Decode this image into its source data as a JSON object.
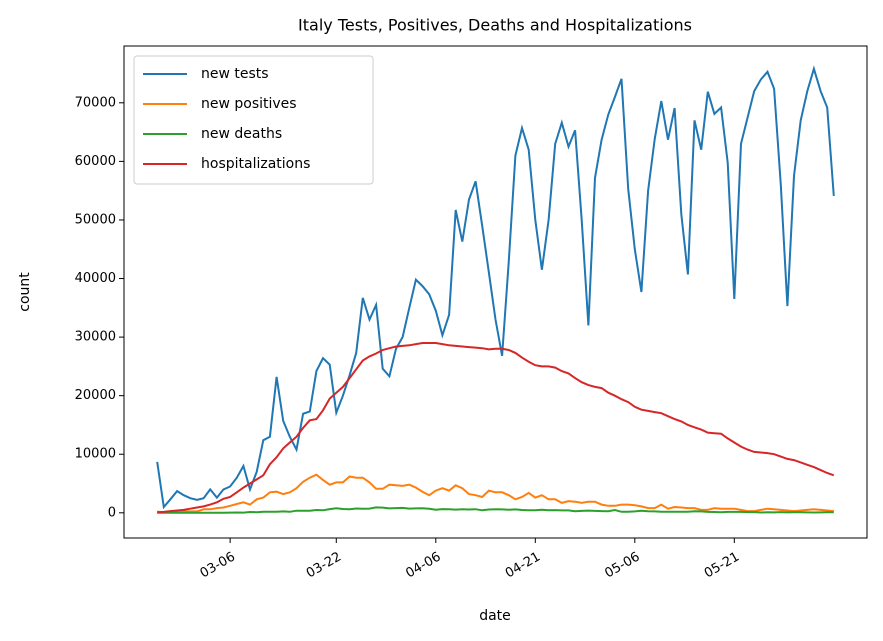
{
  "chart_data": {
    "type": "line",
    "title": "Italy Tests, Positives, Deaths and Hospitalizations",
    "xlabel": "date",
    "ylabel": "count",
    "x": [
      "02-24",
      "02-25",
      "02-26",
      "02-27",
      "02-28",
      "02-29",
      "03-01",
      "03-02",
      "03-03",
      "03-04",
      "03-05",
      "03-06",
      "03-07",
      "03-08",
      "03-09",
      "03-10",
      "03-11",
      "03-12",
      "03-13",
      "03-14",
      "03-15",
      "03-16",
      "03-17",
      "03-18",
      "03-19",
      "03-20",
      "03-21",
      "03-22",
      "03-23",
      "03-24",
      "03-25",
      "03-26",
      "03-27",
      "03-28",
      "03-29",
      "03-30",
      "03-31",
      "04-01",
      "04-02",
      "04-03",
      "04-04",
      "04-05",
      "04-06",
      "04-07",
      "04-08",
      "04-09",
      "04-10",
      "04-11",
      "04-12",
      "04-13",
      "04-14",
      "04-15",
      "04-16",
      "04-17",
      "04-18",
      "04-19",
      "04-20",
      "04-21",
      "04-22",
      "04-23",
      "04-24",
      "04-25",
      "04-26",
      "04-27",
      "04-28",
      "04-29",
      "04-30",
      "05-01",
      "05-02",
      "05-03",
      "05-04",
      "05-05",
      "05-06",
      "05-07",
      "05-08",
      "05-09",
      "05-10",
      "05-11",
      "05-12",
      "05-13",
      "05-14",
      "05-15",
      "05-16",
      "05-17",
      "05-18",
      "05-19",
      "05-20",
      "05-21",
      "05-22",
      "05-23",
      "05-24",
      "05-25",
      "05-26",
      "05-27",
      "05-28",
      "05-29",
      "05-30",
      "05-31",
      "06-01",
      "06-02",
      "06-03",
      "06-04",
      "06-05"
    ],
    "series": [
      {
        "name": "new tests",
        "color": "#1f77b4",
        "values": [
          8700,
          1000,
          2300,
          3700,
          3000,
          2500,
          2200,
          2500,
          4000,
          2600,
          4000,
          4500,
          6000,
          8000,
          4000,
          7000,
          12400,
          13000,
          23200,
          15700,
          13000,
          10800,
          16900,
          17300,
          24200,
          26400,
          25300,
          17100,
          20000,
          23500,
          27300,
          36700,
          33000,
          35500,
          24600,
          23300,
          28000,
          30000,
          35000,
          39800,
          38700,
          37300,
          34500,
          30300,
          33800,
          51700,
          46300,
          53500,
          56600,
          49000,
          41000,
          33000,
          26800,
          43000,
          61000,
          65700,
          62000,
          50000,
          41500,
          50000,
          63000,
          66600,
          62500,
          65300,
          50000,
          32000,
          57200,
          63700,
          68000,
          71000,
          74100,
          55300,
          45000,
          37700,
          55000,
          63800,
          70300,
          63700,
          69100,
          51000,
          40700,
          67000,
          62000,
          71900,
          68100,
          69200,
          59800,
          36500,
          63000,
          67500,
          72000,
          74000,
          75300,
          72400,
          56000,
          35300,
          57500,
          67000,
          72000,
          75800,
          72000,
          69200,
          54100
        ]
      },
      {
        "name": "new positives",
        "color": "#ff7f0e",
        "values": [
          200,
          100,
          200,
          200,
          250,
          250,
          250,
          600,
          600,
          800,
          900,
          1200,
          1500,
          1800,
          1400,
          2300,
          2600,
          3500,
          3600,
          3200,
          3500,
          4200,
          5300,
          6000,
          6500,
          5600,
          4800,
          5200,
          5200,
          6200,
          6000,
          6000,
          5200,
          4100,
          4100,
          4800,
          4700,
          4600,
          4800,
          4300,
          3600,
          3000,
          3800,
          4200,
          3800,
          4700,
          4200,
          3200,
          3000,
          2700,
          3800,
          3500,
          3500,
          3000,
          2300,
          2700,
          3400,
          2600,
          3000,
          2300,
          2300,
          1700,
          2000,
          1900,
          1700,
          1900,
          1900,
          1400,
          1200,
          1200,
          1400,
          1400,
          1300,
          1100,
          800,
          800,
          1400,
          700,
          1000,
          900,
          800,
          800,
          500,
          500,
          800,
          700,
          700,
          700,
          500,
          300,
          300,
          500,
          700,
          600,
          500,
          400,
          300,
          400,
          500,
          600,
          500,
          400,
          300
        ]
      },
      {
        "name": "new deaths",
        "color": "#2ca02c",
        "values": [
          0,
          2,
          1,
          3,
          4,
          5,
          7,
          10,
          11,
          27,
          28,
          41,
          49,
          36,
          133,
          97,
          168,
          196,
          189,
          250,
          175,
          368,
          349,
          345,
          475,
          427,
          627,
          793,
          651,
          601,
          743,
          683,
          712,
          919,
          889,
          756,
          812,
          837,
          727,
          760,
          766,
          681,
          525,
          636,
          604,
          542,
          610,
          570,
          619,
          431,
          566,
          602,
          578,
          525,
          575,
          482,
          433,
          454,
          534,
          437,
          464,
          420,
          415,
          260,
          333,
          382,
          323,
          285,
          269,
          474,
          174,
          195,
          236,
          369,
          274,
          243,
          194,
          165,
          179,
          172,
          195,
          262,
          242,
          153,
          145,
          99,
          162,
          161,
          156,
          130,
          119,
          50,
          92,
          78,
          117,
          70,
          87,
          111,
          75,
          60,
          71,
          88,
          85
        ]
      },
      {
        "name": "hospitalizations",
        "color": "#d62728",
        "values": [
          100,
          150,
          300,
          400,
          500,
          700,
          900,
          1100,
          1400,
          1800,
          2400,
          2700,
          3500,
          4300,
          5000,
          5700,
          6400,
          8300,
          9500,
          11000,
          12000,
          13000,
          14500,
          15800,
          16000,
          17500,
          19500,
          20500,
          21500,
          23000,
          24500,
          26000,
          26700,
          27200,
          27800,
          28100,
          28400,
          28500,
          28600,
          28800,
          29000,
          29000,
          29000,
          28800,
          28600,
          28500,
          28400,
          28300,
          28200,
          28100,
          27900,
          28000,
          28000,
          27800,
          27300,
          26500,
          25800,
          25200,
          25000,
          25000,
          24800,
          24200,
          23800,
          23000,
          22300,
          21800,
          21500,
          21300,
          20500,
          20000,
          19400,
          18900,
          18100,
          17600,
          17400,
          17200,
          17000,
          16500,
          16000,
          15600,
          15000,
          14600,
          14200,
          13700,
          13600,
          13500,
          12700,
          12000,
          11300,
          10800,
          10400,
          10300,
          10200,
          10000,
          9600,
          9200,
          9000,
          8600,
          8200,
          7800,
          7300,
          6800,
          6400
        ]
      }
    ],
    "xlim": [
      "02-19",
      "06-10"
    ],
    "xticks": [
      "03-06",
      "03-22",
      "04-06",
      "04-21",
      "05-06",
      "05-21"
    ],
    "ylim": [
      -4300,
      79700
    ],
    "yticks": [
      0,
      10000,
      20000,
      30000,
      40000,
      50000,
      60000,
      70000
    ],
    "grid": false,
    "legend": "upper left"
  }
}
